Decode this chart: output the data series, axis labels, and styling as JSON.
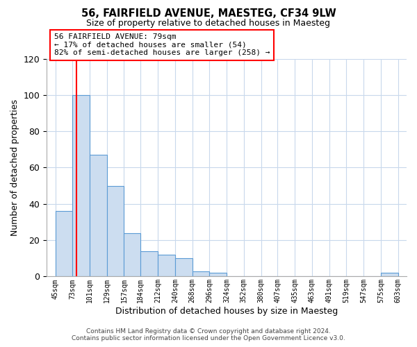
{
  "title": "56, FAIRFIELD AVENUE, MAESTEG, CF34 9LW",
  "subtitle": "Size of property relative to detached houses in Maesteg",
  "xlabel": "Distribution of detached houses by size in Maesteg",
  "ylabel": "Number of detached properties",
  "bin_edges": [
    45,
    73,
    101,
    129,
    157,
    184,
    212,
    240,
    268,
    296,
    324,
    352,
    380,
    407,
    435,
    463,
    491,
    519,
    547,
    575,
    603
  ],
  "counts": [
    36,
    100,
    67,
    50,
    24,
    14,
    12,
    10,
    3,
    2,
    0,
    0,
    0,
    0,
    0,
    0,
    0,
    0,
    0,
    2
  ],
  "bar_color": "#ccddf0",
  "bar_edge_color": "#5b9bd5",
  "red_line_x": 79,
  "ylim": [
    0,
    120
  ],
  "yticks": [
    0,
    20,
    40,
    60,
    80,
    100,
    120
  ],
  "xtick_labels": [
    "45sqm",
    "73sqm",
    "101sqm",
    "129sqm",
    "157sqm",
    "184sqm",
    "212sqm",
    "240sqm",
    "268sqm",
    "296sqm",
    "324sqm",
    "352sqm",
    "380sqm",
    "407sqm",
    "435sqm",
    "463sqm",
    "491sqm",
    "519sqm",
    "547sqm",
    "575sqm",
    "603sqm"
  ],
  "annotation_title": "56 FAIRFIELD AVENUE: 79sqm",
  "annotation_line1": "← 17% of detached houses are smaller (54)",
  "annotation_line2": "82% of semi-detached houses are larger (258) →",
  "footer_line1": "Contains HM Land Registry data © Crown copyright and database right 2024.",
  "footer_line2": "Contains public sector information licensed under the Open Government Licence v3.0.",
  "background_color": "#ffffff",
  "grid_color": "#c8d8ec"
}
